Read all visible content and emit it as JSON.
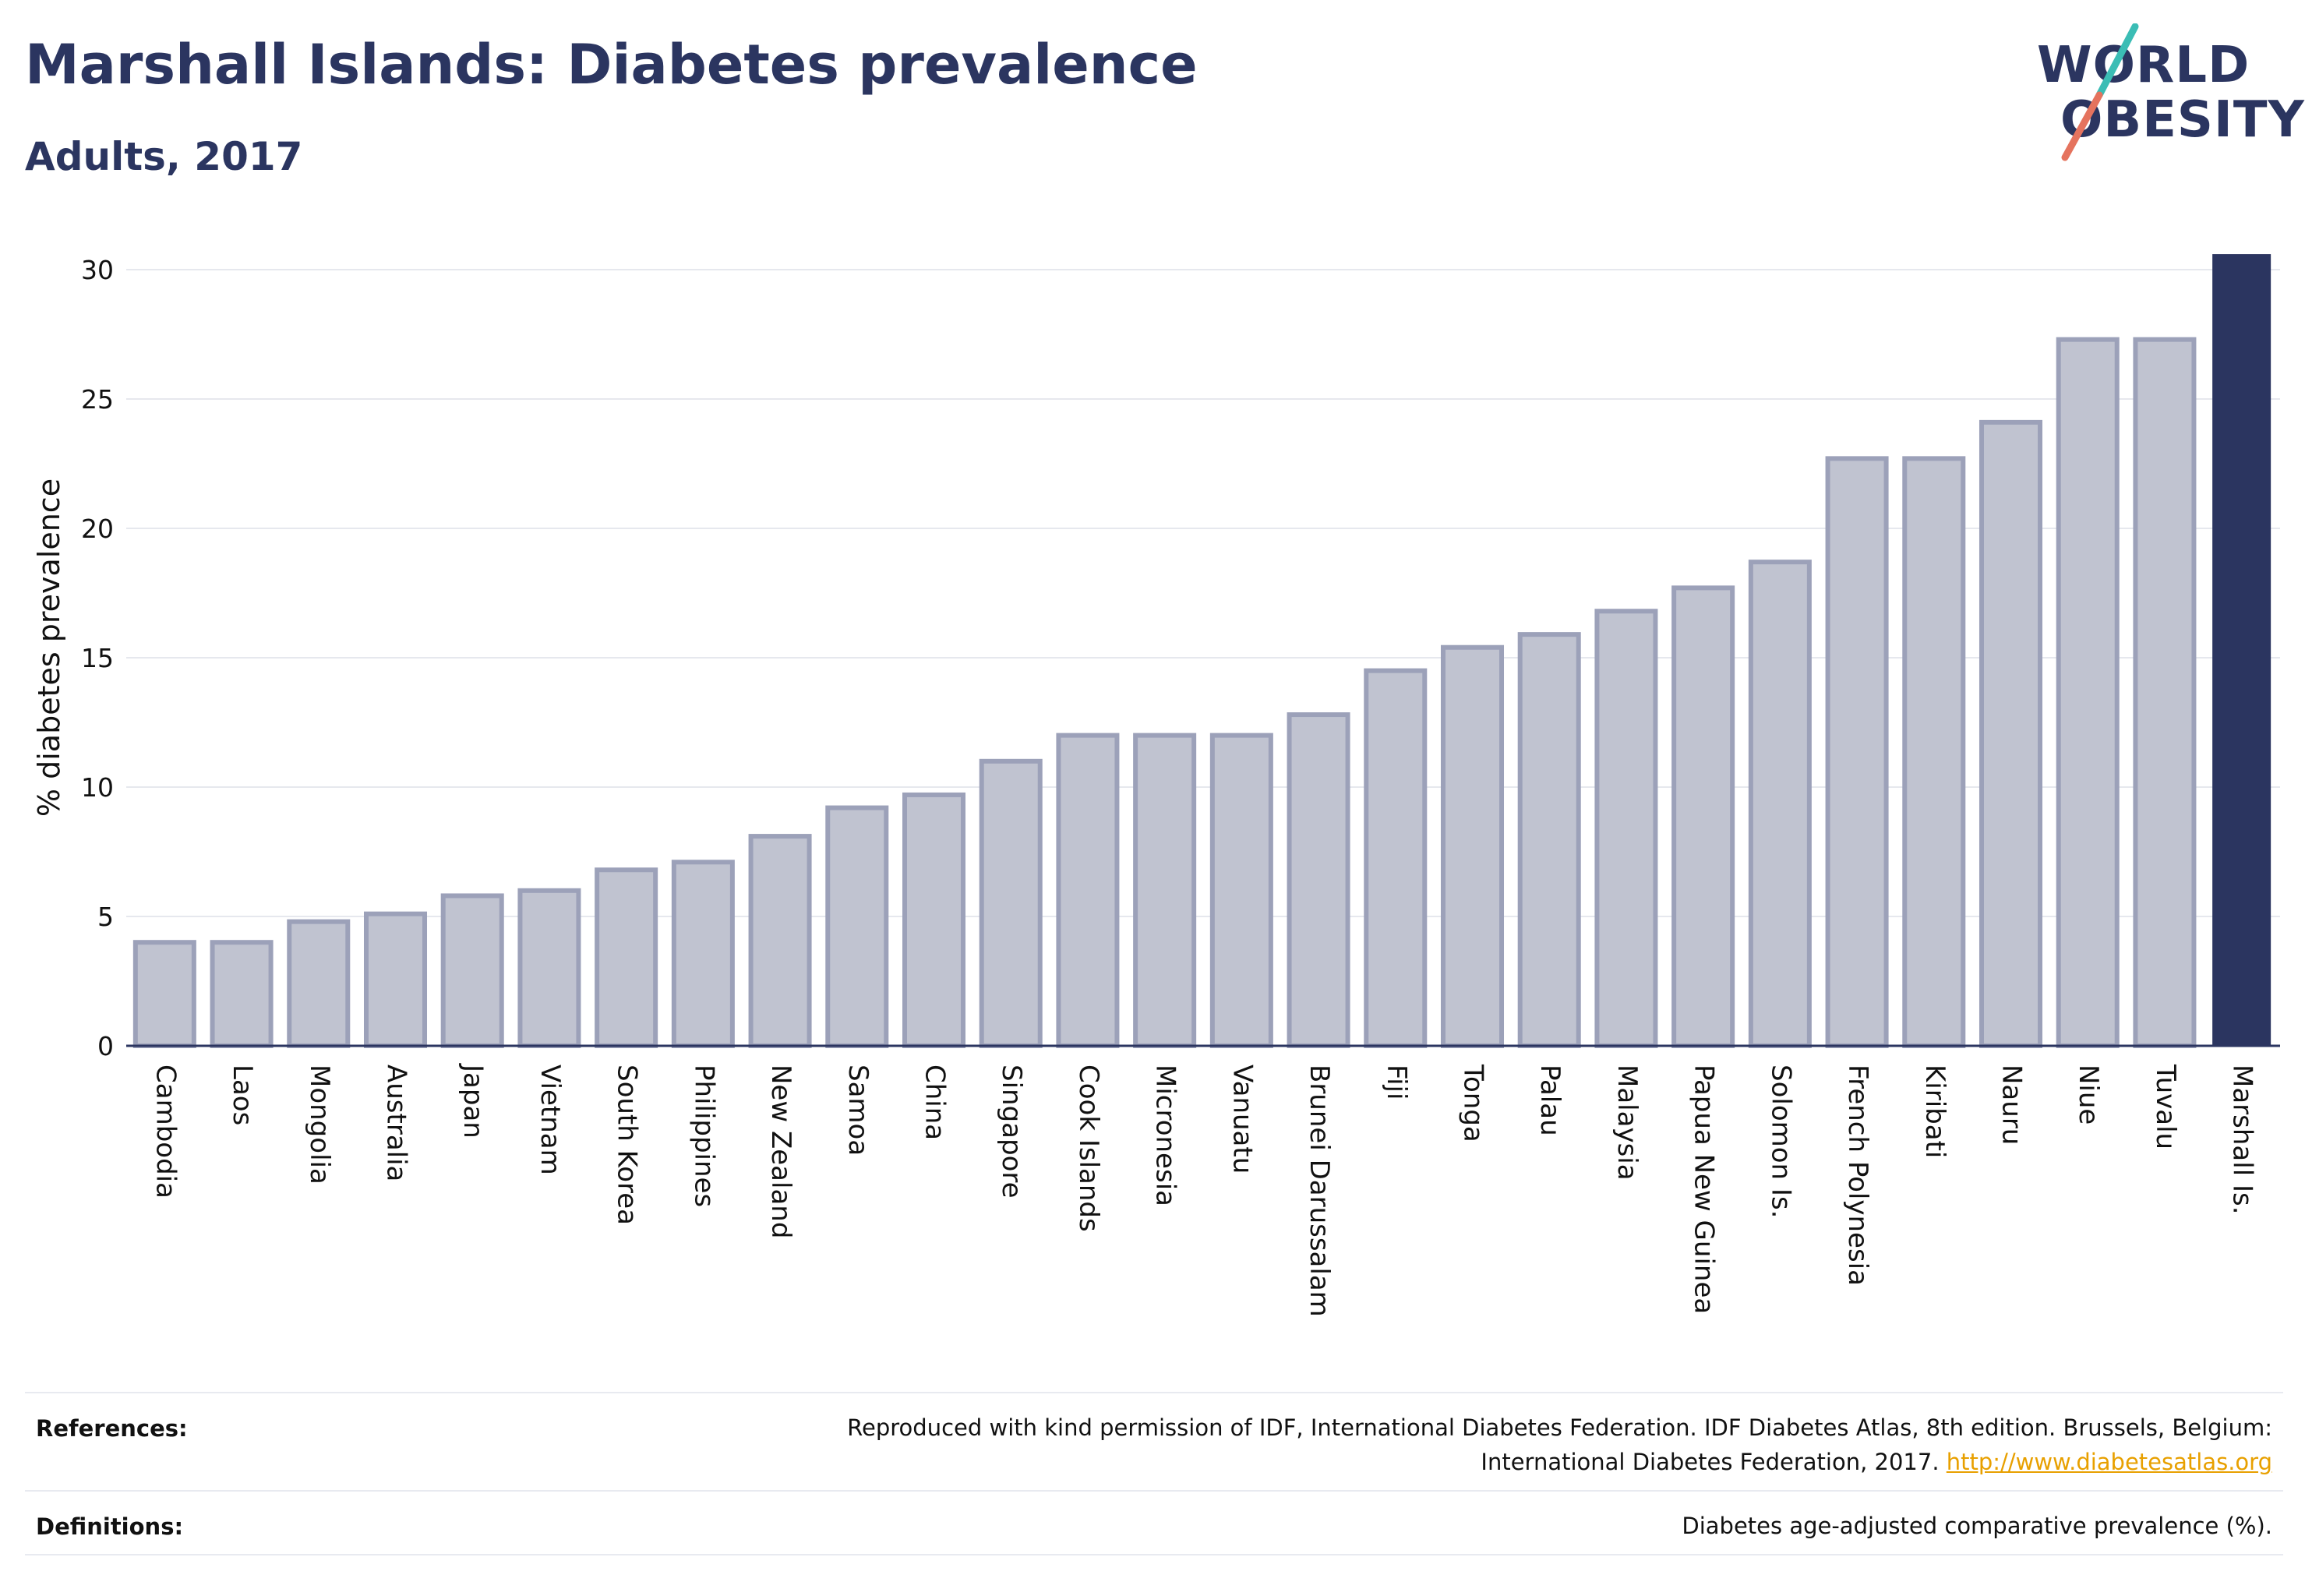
{
  "header": {
    "title": "Marshall Islands: Diabetes prevalence",
    "subtitle": "Adults, 2017"
  },
  "logo": {
    "line1": "WORLD",
    "line2": "OBESITY",
    "slash_colors": [
      "#3bbdb5",
      "#e5735e"
    ]
  },
  "chart_data": {
    "type": "bar",
    "ylabel": "% diabetes prevalence",
    "ylim": [
      0,
      30
    ],
    "yticks": [
      0,
      5,
      10,
      15,
      20,
      25,
      30
    ],
    "grid": true,
    "categories": [
      "Cambodia",
      "Laos",
      "Mongolia",
      "Australia",
      "Japan",
      "Vietnam",
      "South Korea",
      "Philippines",
      "New Zealand",
      "Samoa",
      "China",
      "Singapore",
      "Cook Islands",
      "Micronesia",
      "Vanuatu",
      "Brunei Darussalam",
      "Fiji",
      "Tonga",
      "Palau",
      "Malaysia",
      "Papua New Guinea",
      "Solomon Is.",
      "French Polynesia",
      "Kiribati",
      "Nauru",
      "Niue",
      "Tuvalu",
      "Marshall Is."
    ],
    "values": [
      4.0,
      4.0,
      4.8,
      5.1,
      5.8,
      6.0,
      6.8,
      7.1,
      8.1,
      9.2,
      9.7,
      11.0,
      12.0,
      12.0,
      12.0,
      12.8,
      14.5,
      15.4,
      15.9,
      16.8,
      17.7,
      18.7,
      22.7,
      22.7,
      24.1,
      27.3,
      27.3,
      30.6
    ],
    "highlight": "Marshall Is.",
    "bar_color": "#c0c3d0",
    "bar_border": "#9ca1b9",
    "highlight_color": "#2b3560"
  },
  "footer": {
    "references_label": "References:",
    "references_text_1": "Reproduced with kind permission of IDF, International Diabetes Federation. IDF Diabetes Atlas, 8th edition. Brussels, Belgium:",
    "references_text_2": "International Diabetes Federation, 2017.",
    "references_link": "http://www.diabetesatlas.org",
    "definitions_label": "Definitions:",
    "definitions_text": "Diabetes age-adjusted comparative prevalence (%)."
  }
}
